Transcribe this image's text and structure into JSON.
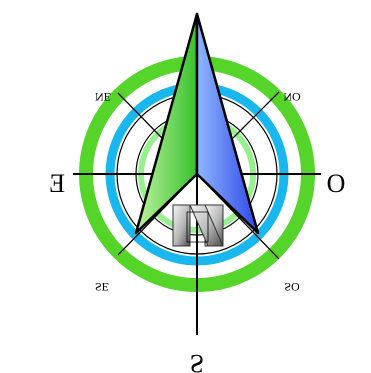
{
  "compass": {
    "labels": {
      "south": "S",
      "east": "E",
      "west": "O",
      "northeast": "NE",
      "northwest": "NO",
      "southeast": "SE",
      "southwest": "SO",
      "north_letter": "N"
    },
    "rendering": {
      "mirrored_horizontally": true,
      "mirrored_vertically": true
    },
    "colors": {
      "outer_ring": "#55d52a",
      "blue_ring": "#18b8ee",
      "inner_green_ring": "#97f08f",
      "needle_green_light": "#bff3a1",
      "needle_green_dark": "#37c22c",
      "needle_blue_light": "#8fb7ff",
      "needle_blue_dark": "#2d46e6",
      "line": "#000000",
      "metal_light": "#f3f3f3",
      "metal_dark": "#4d4d4d"
    },
    "icons": {
      "center_mark": "metallic-n-icon"
    }
  }
}
